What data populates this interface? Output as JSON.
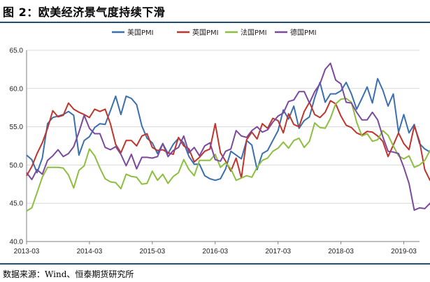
{
  "figure": {
    "title": "图 2：欧美经济景气度持续下滑",
    "source": "数据来源：Wind、恒泰期货研究所"
  },
  "chart_data": {
    "type": "line",
    "title": "",
    "xlabel": "",
    "ylabel": "",
    "ylim": [
      40.0,
      65.0
    ],
    "yticks": [
      "40.0",
      "45.0",
      "50.0",
      "55.0",
      "60.0",
      "65.0"
    ],
    "xticks": [
      "2013-03",
      "2014-03",
      "2015-03",
      "2016-03",
      "2017-03",
      "2018-03",
      "2019-03"
    ],
    "x_start": "2013-03",
    "x_end": "2019-06",
    "grid": "horizontal",
    "legend_position": "top-center",
    "series": [
      {
        "name": "美国PMI",
        "color": "#3a6fb0",
        "values": [
          51.3,
          50.7,
          49.0,
          50.9,
          55.4,
          56.2,
          56.4,
          56.6,
          57.0,
          56.5,
          51.3,
          53.2,
          53.7,
          54.9,
          55.4,
          55.3,
          57.1,
          59.0,
          56.6,
          59.0,
          58.7,
          57.9,
          55.1,
          53.5,
          52.9,
          51.5,
          52.8,
          51.5,
          52.7,
          53.5,
          52.9,
          51.1,
          50.1,
          50.1,
          48.6,
          48.2,
          48.0,
          48.2,
          49.5,
          51.8,
          51.3,
          50.8,
          53.2,
          52.6,
          49.4,
          51.5,
          51.9,
          53.2,
          54.5,
          57.2,
          56.0,
          57.7,
          54.8,
          55.8,
          56.3,
          58.8,
          60.8,
          58.2,
          59.3,
          59.3,
          59.7,
          60.8,
          59.3,
          57.3,
          58.7,
          60.2,
          58.1,
          61.3,
          59.8,
          57.7,
          59.3,
          54.3,
          56.6,
          54.2,
          55.3,
          52.8,
          52.1,
          51.7,
          51.2
        ]
      },
      {
        "name": "英国PMI",
        "color": "#c0352b",
        "values": [
          48.6,
          49.8,
          51.5,
          52.9,
          54.8,
          57.1,
          56.3,
          56.5,
          58.1,
          57.3,
          56.9,
          56.6,
          56.2,
          57.3,
          57.0,
          57.3,
          55.4,
          52.7,
          51.6,
          53.2,
          53.2,
          52.5,
          53.8,
          54.1,
          52.3,
          51.9,
          52.0,
          51.6,
          51.4,
          53.6,
          52.5,
          52.1,
          50.4,
          51.0,
          51.8,
          52.1,
          55.4,
          51.6,
          50.5,
          49.2,
          50.9,
          48.3,
          53.3,
          54.3,
          53.4,
          55.4,
          54.8,
          56.1,
          55.8,
          54.2,
          56.7,
          55.3,
          55.0,
          57.0,
          58.2,
          56.6,
          56.2,
          56.9,
          58.4,
          58.0,
          56.4,
          55.2,
          54.9,
          54.2,
          53.9,
          54.4,
          54.3,
          53.8,
          53.1,
          51.1,
          52.6,
          54.2,
          52.8,
          52.0,
          55.1,
          53.1,
          49.4,
          48.0,
          48.0
        ]
      },
      {
        "name": "法国PMI",
        "color": "#8dbf3f",
        "values": [
          44.0,
          44.4,
          46.4,
          48.4,
          49.7,
          49.7,
          49.7,
          49.6,
          48.7,
          47.0,
          49.3,
          49.9,
          52.1,
          51.2,
          49.6,
          48.2,
          47.8,
          47.7,
          46.9,
          48.8,
          48.5,
          48.4,
          47.5,
          47.6,
          49.2,
          48.0,
          48.8,
          47.6,
          48.5,
          49.0,
          50.7,
          49.4,
          48.6,
          50.6,
          50.6,
          50.6,
          51.4,
          49.7,
          50.3,
          49.5,
          48.0,
          48.3,
          48.6,
          48.4,
          49.7,
          50.6,
          50.9,
          51.8,
          52.2,
          53.0,
          52.2,
          53.2,
          53.5,
          52.3,
          53.1,
          55.5,
          54.9,
          54.8,
          56.1,
          58.0,
          58.6,
          58.7,
          58.2,
          55.6,
          53.8,
          54.1,
          53.1,
          53.3,
          54.5,
          53.9,
          52.5,
          51.2,
          50.8,
          51.2,
          49.7,
          50.0,
          50.6,
          51.9,
          49.6
        ]
      },
      {
        "name": "德国PMI",
        "color": "#7b4a9e",
        "values": [
          49.0,
          48.1,
          49.4,
          48.8,
          50.6,
          51.2,
          52.0,
          51.1,
          51.5,
          52.4,
          54.3,
          56.5,
          54.8,
          54.1,
          54.1,
          52.3,
          52.0,
          52.4,
          51.4,
          49.9,
          51.4,
          49.5,
          51.0,
          51.0,
          50.9,
          51.1,
          52.8,
          51.1,
          51.9,
          52.3,
          53.8,
          51.6,
          52.3,
          51.2,
          52.5,
          52.9,
          50.7,
          50.5,
          51.8,
          52.1,
          54.5,
          53.8,
          53.6,
          54.5,
          55.0,
          54.3,
          54.6,
          55.6,
          56.4,
          56.8,
          58.3,
          58.5,
          59.6,
          59.6,
          58.1,
          59.6,
          60.6,
          62.5,
          63.3,
          61.1,
          60.6,
          58.2,
          58.1,
          56.9,
          55.9,
          55.9,
          56.9,
          55.9,
          53.7,
          51.8,
          51.7,
          51.5,
          49.7,
          47.6,
          44.1,
          44.4,
          44.3,
          45.0,
          43.2
        ]
      }
    ]
  }
}
